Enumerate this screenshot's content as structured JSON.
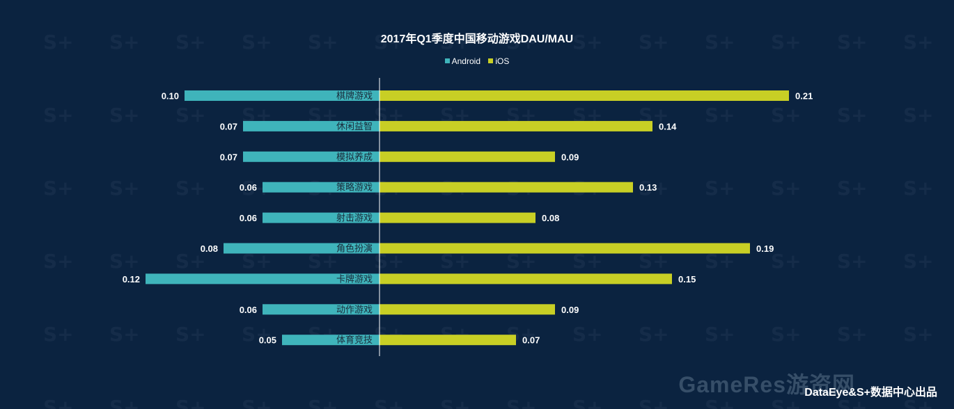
{
  "chart_data": {
    "type": "bar",
    "orientation": "horizontal-butterfly",
    "title": "2017年Q1季度中国移动游戏DAU/MAU",
    "categories": [
      "棋牌游戏",
      "休闲益智",
      "模拟养成",
      "策略游戏",
      "射击游戏",
      "角色扮演",
      "卡牌游戏",
      "动作游戏",
      "体育竞技"
    ],
    "series": [
      {
        "name": "Android",
        "values": [
          0.1,
          0.07,
          0.07,
          0.06,
          0.06,
          0.08,
          0.12,
          0.06,
          0.05
        ],
        "labels": [
          "0.10",
          "0.07",
          "0.07",
          "0.06",
          "0.06",
          "0.08",
          "0.12",
          "0.06",
          "0.05"
        ],
        "color": "#3fb4bb",
        "side": "left"
      },
      {
        "name": "iOS",
        "values": [
          0.21,
          0.14,
          0.09,
          0.13,
          0.08,
          0.19,
          0.15,
          0.09,
          0.07
        ],
        "labels": [
          "0.21",
          "0.14",
          "0.09",
          "0.13",
          "0.08",
          "0.19",
          "0.15",
          "0.09",
          "0.07"
        ],
        "color": "#c8cf25",
        "side": "right"
      }
    ],
    "legend_position": "top-center",
    "grid": false
  },
  "footer": "DataEye&S+数据中心出品",
  "watermark": "GameRes游资网",
  "colors": {
    "background": "#0b2340",
    "text": "#ffffff"
  }
}
